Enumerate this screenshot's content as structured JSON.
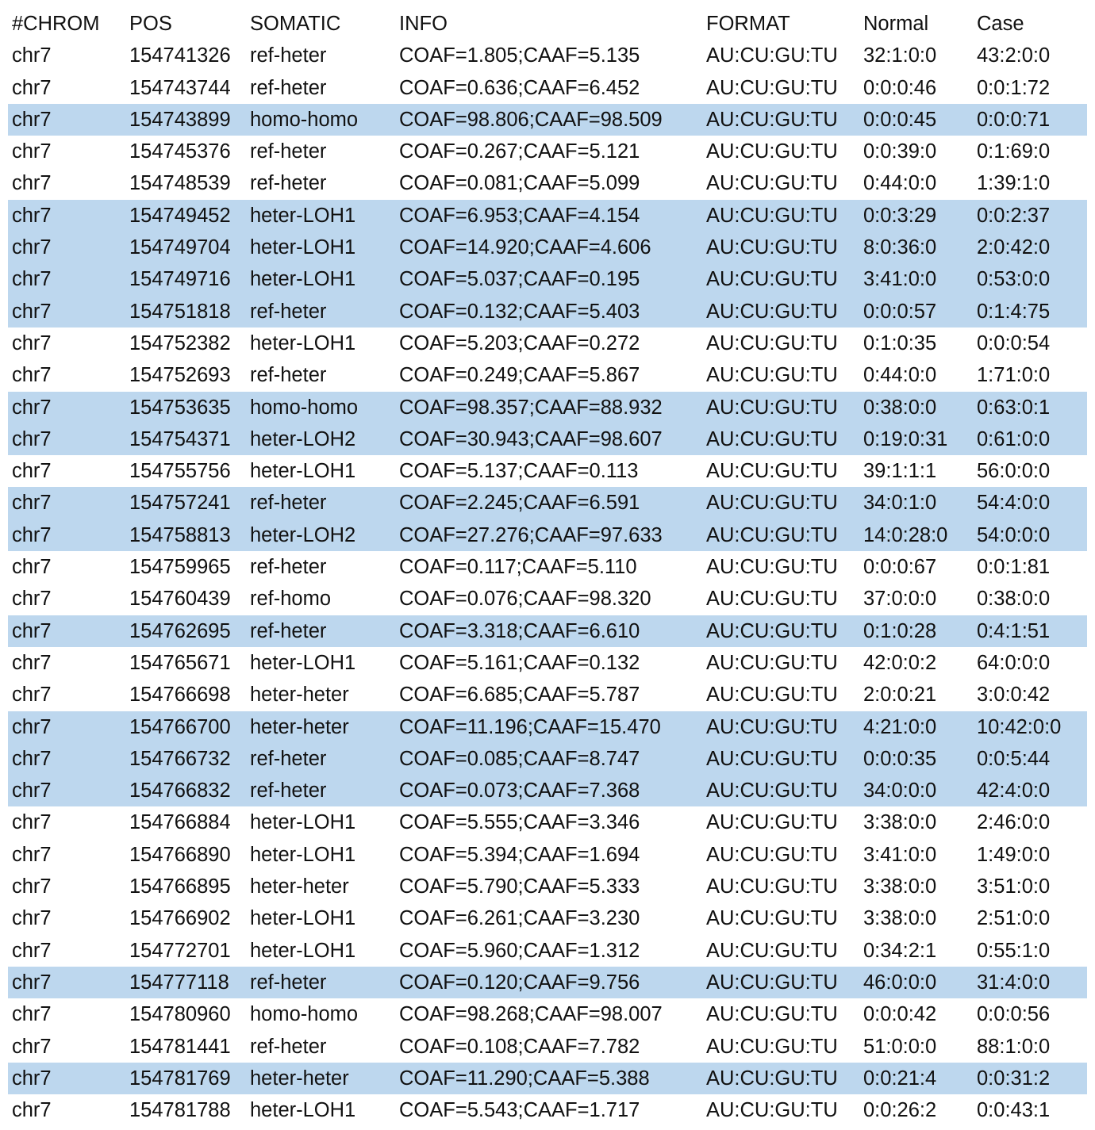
{
  "columns": [
    "#CHROM",
    "POS",
    "SOMATIC",
    "INFO",
    "FORMAT",
    "Normal",
    "Case"
  ],
  "rows": [
    [
      "chr7",
      "154741326",
      "ref-heter",
      "COAF=1.805;CAAF=5.135",
      "AU:CU:GU:TU",
      "32:1:0:0",
      "43:2:0:0"
    ],
    [
      "chr7",
      "154743744",
      "ref-heter",
      "COAF=0.636;CAAF=6.452",
      "AU:CU:GU:TU",
      "0:0:0:46",
      "0:0:1:72"
    ],
    [
      "chr7",
      "154743899",
      "homo-homo",
      "COAF=98.806;CAAF=98.509",
      "AU:CU:GU:TU",
      "0:0:0:45",
      "0:0:0:71"
    ],
    [
      "chr7",
      "154745376",
      "ref-heter",
      "COAF=0.267;CAAF=5.121",
      "AU:CU:GU:TU",
      "0:0:39:0",
      "0:1:69:0"
    ],
    [
      "chr7",
      "154748539",
      "ref-heter",
      "COAF=0.081;CAAF=5.099",
      "AU:CU:GU:TU",
      "0:44:0:0",
      "1:39:1:0"
    ],
    [
      "chr7",
      "154749452",
      "heter-LOH1",
      "COAF=6.953;CAAF=4.154",
      "AU:CU:GU:TU",
      "0:0:3:29",
      "0:0:2:37"
    ],
    [
      "chr7",
      "154749704",
      "heter-LOH1",
      "COAF=14.920;CAAF=4.606",
      "AU:CU:GU:TU",
      "8:0:36:0",
      "2:0:42:0"
    ],
    [
      "chr7",
      "154749716",
      "heter-LOH1",
      "COAF=5.037;CAAF=0.195",
      "AU:CU:GU:TU",
      "3:41:0:0",
      "0:53:0:0"
    ],
    [
      "chr7",
      "154751818",
      "ref-heter",
      "COAF=0.132;CAAF=5.403",
      "AU:CU:GU:TU",
      "0:0:0:57",
      "0:1:4:75"
    ],
    [
      "chr7",
      "154752382",
      "heter-LOH1",
      "COAF=5.203;CAAF=0.272",
      "AU:CU:GU:TU",
      "0:1:0:35",
      "0:0:0:54"
    ],
    [
      "chr7",
      "154752693",
      "ref-heter",
      "COAF=0.249;CAAF=5.867",
      "AU:CU:GU:TU",
      "0:44:0:0",
      "1:71:0:0"
    ],
    [
      "chr7",
      "154753635",
      "homo-homo",
      "COAF=98.357;CAAF=88.932",
      "AU:CU:GU:TU",
      "0:38:0:0",
      "0:63:0:1"
    ],
    [
      "chr7",
      "154754371",
      "heter-LOH2",
      "COAF=30.943;CAAF=98.607",
      "AU:CU:GU:TU",
      "0:19:0:31",
      "0:61:0:0"
    ],
    [
      "chr7",
      "154755756",
      "heter-LOH1",
      "COAF=5.137;CAAF=0.113",
      "AU:CU:GU:TU",
      "39:1:1:1",
      "56:0:0:0"
    ],
    [
      "chr7",
      "154757241",
      "ref-heter",
      "COAF=2.245;CAAF=6.591",
      "AU:CU:GU:TU",
      "34:0:1:0",
      "54:4:0:0"
    ],
    [
      "chr7",
      "154758813",
      "heter-LOH2",
      "COAF=27.276;CAAF=97.633",
      "AU:CU:GU:TU",
      "14:0:28:0",
      "54:0:0:0"
    ],
    [
      "chr7",
      "154759965",
      "ref-heter",
      "COAF=0.117;CAAF=5.110",
      "AU:CU:GU:TU",
      "0:0:0:67",
      "0:0:1:81"
    ],
    [
      "chr7",
      "154760439",
      "ref-homo",
      "COAF=0.076;CAAF=98.320",
      "AU:CU:GU:TU",
      "37:0:0:0",
      "0:38:0:0"
    ],
    [
      "chr7",
      "154762695",
      "ref-heter",
      "COAF=3.318;CAAF=6.610",
      "AU:CU:GU:TU",
      "0:1:0:28",
      "0:4:1:51"
    ],
    [
      "chr7",
      "154765671",
      "heter-LOH1",
      "COAF=5.161;CAAF=0.132",
      "AU:CU:GU:TU",
      "42:0:0:2",
      "64:0:0:0"
    ],
    [
      "chr7",
      "154766698",
      "heter-heter",
      "COAF=6.685;CAAF=5.787",
      "AU:CU:GU:TU",
      "2:0:0:21",
      "3:0:0:42"
    ],
    [
      "chr7",
      "154766700",
      "heter-heter",
      "COAF=11.196;CAAF=15.470",
      "AU:CU:GU:TU",
      "4:21:0:0",
      "10:42:0:0"
    ],
    [
      "chr7",
      "154766732",
      "ref-heter",
      "COAF=0.085;CAAF=8.747",
      "AU:CU:GU:TU",
      "0:0:0:35",
      "0:0:5:44"
    ],
    [
      "chr7",
      "154766832",
      "ref-heter",
      "COAF=0.073;CAAF=7.368",
      "AU:CU:GU:TU",
      "34:0:0:0",
      "42:4:0:0"
    ],
    [
      "chr7",
      "154766884",
      "heter-LOH1",
      "COAF=5.555;CAAF=3.346",
      "AU:CU:GU:TU",
      "3:38:0:0",
      "2:46:0:0"
    ],
    [
      "chr7",
      "154766890",
      "heter-LOH1",
      "COAF=5.394;CAAF=1.694",
      "AU:CU:GU:TU",
      "3:41:0:0",
      "1:49:0:0"
    ],
    [
      "chr7",
      "154766895",
      "heter-heter",
      "COAF=5.790;CAAF=5.333",
      "AU:CU:GU:TU",
      "3:38:0:0",
      "3:51:0:0"
    ],
    [
      "chr7",
      "154766902",
      "heter-LOH1",
      "COAF=6.261;CAAF=3.230",
      "AU:CU:GU:TU",
      "3:38:0:0",
      "2:51:0:0"
    ],
    [
      "chr7",
      "154772701",
      "heter-LOH1",
      "COAF=5.960;CAAF=1.312",
      "AU:CU:GU:TU",
      "0:34:2:1",
      "0:55:1:0"
    ],
    [
      "chr7",
      "154777118",
      "ref-heter",
      "COAF=0.120;CAAF=9.756",
      "AU:CU:GU:TU",
      "46:0:0:0",
      "31:4:0:0"
    ],
    [
      "chr7",
      "154780960",
      "homo-homo",
      "COAF=98.268;CAAF=98.007",
      "AU:CU:GU:TU",
      "0:0:0:42",
      "0:0:0:56"
    ],
    [
      "chr7",
      "154781441",
      "ref-heter",
      "COAF=0.108;CAAF=7.782",
      "AU:CU:GU:TU",
      "51:0:0:0",
      "88:1:0:0"
    ],
    [
      "chr7",
      "154781769",
      "heter-heter",
      "COAF=11.290;CAAF=5.388",
      "AU:CU:GU:TU",
      "0:0:21:4",
      "0:0:31:2"
    ],
    [
      "chr7",
      "154781788",
      "heter-LOH1",
      "COAF=5.543;CAAF=1.717",
      "AU:CU:GU:TU",
      "0:0:26:2",
      "0:0:43:1"
    ]
  ],
  "highlighted_rows": [
    2,
    5,
    6,
    7,
    8,
    11,
    12,
    14,
    15,
    18,
    21,
    22,
    23,
    29,
    32
  ],
  "highlight_color": "#bdd7ee"
}
